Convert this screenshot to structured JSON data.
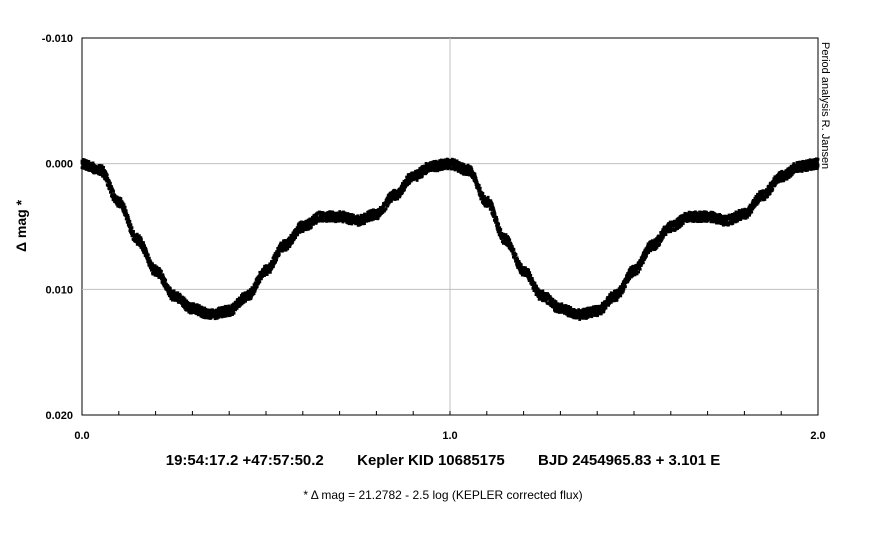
{
  "chart_data": {
    "type": "scatter",
    "ylabel": "Δ mag *",
    "side_note": "Period analysis  R. Jansen",
    "xlim": [
      0.0,
      2.0
    ],
    "ylim": [
      -0.01,
      0.02
    ],
    "y_inverted": true,
    "x_ticks": [
      "0.0",
      "1.0",
      "2.0"
    ],
    "y_ticks": [
      "-0.010",
      "0.000",
      "0.010",
      "0.020"
    ],
    "grid": true,
    "caption_main": "19:54:17.2 +47:57:50.2        Kepler KID 10685175        BJD 2454965.83 + 3.101 E",
    "caption_footnote": "* Δ mag = 21.2782 - 2.5 log (KEPLER corrected flux)",
    "series": [
      {
        "points": [
          [
            0.0,
            0.0
          ],
          [
            0.05,
            0.0005
          ],
          [
            0.1,
            0.003
          ],
          [
            0.15,
            0.006
          ],
          [
            0.2,
            0.0085
          ],
          [
            0.25,
            0.0105
          ],
          [
            0.3,
            0.0115
          ],
          [
            0.35,
            0.012
          ],
          [
            0.4,
            0.0117
          ],
          [
            0.45,
            0.0105
          ],
          [
            0.5,
            0.0085
          ],
          [
            0.55,
            0.0065
          ],
          [
            0.6,
            0.005
          ],
          [
            0.65,
            0.0042
          ],
          [
            0.7,
            0.0042
          ],
          [
            0.75,
            0.0045
          ],
          [
            0.8,
            0.004
          ],
          [
            0.85,
            0.0025
          ],
          [
            0.9,
            0.001
          ],
          [
            0.95,
            0.0002
          ],
          [
            1.0,
            0.0
          ],
          [
            1.05,
            0.0005
          ],
          [
            1.1,
            0.003
          ],
          [
            1.15,
            0.006
          ],
          [
            1.2,
            0.0085
          ],
          [
            1.25,
            0.0105
          ],
          [
            1.3,
            0.0115
          ],
          [
            1.35,
            0.012
          ],
          [
            1.4,
            0.0117
          ],
          [
            1.45,
            0.0105
          ],
          [
            1.5,
            0.0085
          ],
          [
            1.55,
            0.0065
          ],
          [
            1.6,
            0.005
          ],
          [
            1.65,
            0.0042
          ],
          [
            1.7,
            0.0042
          ],
          [
            1.75,
            0.0045
          ],
          [
            1.8,
            0.004
          ],
          [
            1.85,
            0.0025
          ],
          [
            1.9,
            0.001
          ],
          [
            1.95,
            0.0002
          ],
          [
            2.0,
            0.0
          ]
        ]
      }
    ]
  }
}
